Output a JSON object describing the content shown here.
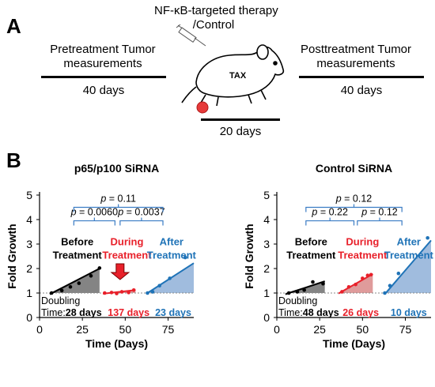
{
  "panel_a": {
    "letter": "A",
    "therapy_line1": "NF-κB-targeted therapy",
    "therapy_line2": "/Control",
    "mouse_label": "TAX",
    "pre_line1": "Pretreatment Tumor",
    "pre_line2": "measurements",
    "pre_days": "40 days",
    "post_line1": "Posttreatment Tumor",
    "post_line2": "measurements",
    "post_days": "40 days",
    "during_days": "20 days"
  },
  "panel_b": {
    "letter": "B"
  },
  "colors": {
    "before": "#000000",
    "during": "#e8202a",
    "after": "#1f73b7",
    "bracket": "#3a7cc4",
    "arrow": "#e8202a"
  },
  "chart_data": [
    {
      "type": "scatter",
      "title": "p65/p100 SiRNA",
      "xlabel": "Time (Days)",
      "ylabel": "Fold Growth",
      "xlim": [
        0,
        90
      ],
      "ylim": [
        0,
        5
      ],
      "xticks": [
        "0",
        "25",
        "50",
        "75"
      ],
      "yticks": [
        "0",
        "1",
        "2",
        "3",
        "4",
        "5"
      ],
      "baseline": 1,
      "series": [
        {
          "name": "Before Treatment",
          "label_line1": "Before",
          "label_line2": "Treatment",
          "color": "#000000",
          "points": [
            [
              7,
              1.0
            ],
            [
              13,
              1.1
            ],
            [
              18,
              1.25
            ],
            [
              23,
              1.4
            ],
            [
              30,
              1.7
            ],
            [
              35,
              2.02
            ]
          ],
          "fit": [
            [
              6,
              0.95
            ],
            [
              35,
              2.0
            ]
          ]
        },
        {
          "name": "During Treatment",
          "label_line1": "During",
          "label_line2": "Treatment",
          "color": "#e8202a",
          "points": [
            [
              38,
              1.0
            ],
            [
              42,
              1.02
            ],
            [
              45,
              0.98
            ],
            [
              48,
              1.05
            ],
            [
              52,
              1.02
            ],
            [
              55,
              1.12
            ]
          ],
          "fit": [
            [
              37,
              0.97
            ],
            [
              56,
              1.12
            ]
          ]
        },
        {
          "name": "After Treatment",
          "label_line1": "After",
          "label_line2": "Treatment",
          "color": "#1f73b7",
          "points": [
            [
              63,
              1.0
            ],
            [
              66,
              1.05
            ],
            [
              70,
              1.3
            ],
            [
              76,
              1.6
            ],
            [
              85,
              2.45
            ]
          ],
          "fit": [
            [
              63,
              1.0
            ],
            [
              90,
              2.22
            ]
          ]
        }
      ],
      "doubling_label": "Doubling",
      "doubling_prefix": "Time:",
      "doubling_times": [
        "28 days",
        "137 days",
        "23 days"
      ],
      "brackets": [
        {
          "from_x": 20,
          "to_x": 44,
          "y": 3.95,
          "label": "p = 0.0060"
        },
        {
          "from_x": 47,
          "to_x": 72,
          "y": 3.95,
          "label": "p = 0.0037"
        },
        {
          "from_x": 20,
          "to_x": 72,
          "y": 4.5,
          "label": "p = 0.11"
        }
      ],
      "arrow_x": 47
    },
    {
      "type": "scatter",
      "title": "Control SiRNA",
      "xlabel": "Time (Days)",
      "ylabel": "Fold Growth",
      "xlim": [
        0,
        90
      ],
      "ylim": [
        0,
        5
      ],
      "xticks": [
        "0",
        "25",
        "50",
        "75"
      ],
      "yticks": [
        "0",
        "1",
        "2",
        "3",
        "4",
        "5"
      ],
      "baseline": 1,
      "series": [
        {
          "name": "Before Treatment",
          "label_line1": "Before",
          "label_line2": "Treatment",
          "color": "#000000",
          "points": [
            [
              7,
              1.0
            ],
            [
              12,
              1.05
            ],
            [
              16,
              1.12
            ],
            [
              21,
              1.45
            ],
            [
              27,
              1.38
            ]
          ],
          "fit": [
            [
              5,
              0.95
            ],
            [
              28,
              1.48
            ]
          ]
        },
        {
          "name": "During Treatment",
          "label_line1": "During",
          "label_line2": "Treatment",
          "color": "#e8202a",
          "points": [
            [
              38,
              1.05
            ],
            [
              42,
              1.25
            ],
            [
              46,
              1.35
            ],
            [
              50,
              1.6
            ],
            [
              53,
              1.72
            ],
            [
              55,
              1.75
            ]
          ],
          "fit": [
            [
              36,
              0.98
            ],
            [
              56,
              1.78
            ]
          ]
        },
        {
          "name": "After Treatment",
          "label_line1": "After",
          "label_line2": "Treatment",
          "color": "#1f73b7",
          "points": [
            [
              63,
              1.0
            ],
            [
              66,
              1.3
            ],
            [
              71,
              1.8
            ],
            [
              88,
              3.25
            ]
          ],
          "fit": [
            [
              63,
              0.95
            ],
            [
              90,
              3.15
            ]
          ]
        }
      ],
      "doubling_label": "Doubling",
      "doubling_prefix": "Time:",
      "doubling_times": [
        "48 days",
        "26 days",
        "10 days"
      ],
      "brackets": [
        {
          "from_x": 17,
          "to_x": 45,
          "y": 3.95,
          "label": "p = 0.22"
        },
        {
          "from_x": 47,
          "to_x": 73,
          "y": 3.95,
          "label": "p = 0.12"
        },
        {
          "from_x": 17,
          "to_x": 73,
          "y": 4.5,
          "label": "p = 0.12"
        }
      ]
    }
  ]
}
